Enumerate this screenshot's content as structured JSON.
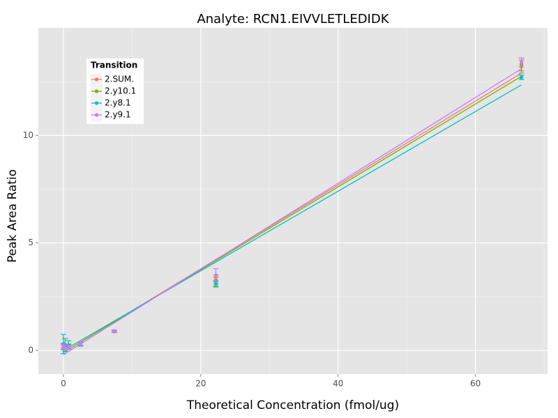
{
  "chart_data": {
    "type": "scatter",
    "title": "Analyte: RCN1.EIVVLETLEDIDK",
    "x_label": "Theoretical Concentration (fmol/ug)",
    "y_label": "Peak Area Ratio",
    "x": [
      0,
      0.25,
      0.74,
      2.47,
      7.41,
      22.2,
      66.7
    ],
    "line_x": [
      0,
      66.7
    ],
    "series": [
      {
        "name": "2.SUM.",
        "color": "#F8766D",
        "values": [
          0.15,
          0.12,
          0.18,
          0.3,
          0.88,
          3.3,
          13.2
        ],
        "errors": [
          0.1,
          0.05,
          0.1,
          0.08,
          0.05,
          0.2,
          0.3
        ],
        "line_values": [
          -0.1,
          12.9
        ]
      },
      {
        "name": "2.y10.1",
        "color": "#7CAE00",
        "values": [
          0.18,
          0.14,
          0.2,
          0.32,
          0.9,
          3.2,
          13.3
        ],
        "errors": [
          0.15,
          0.05,
          0.1,
          0.08,
          0.05,
          0.2,
          0.3
        ],
        "line_values": [
          -0.1,
          12.75
        ]
      },
      {
        "name": "2.y8.1",
        "color": "#00BFC4",
        "values": [
          0.3,
          0.25,
          0.25,
          0.3,
          0.9,
          3.1,
          12.7
        ],
        "errors": [
          0.45,
          0.3,
          0.2,
          0.1,
          0.05,
          0.15,
          0.1
        ],
        "line_values": [
          0.0,
          12.35
        ]
      },
      {
        "name": "2.y9.1",
        "color": "#C77CFF",
        "values": [
          0.2,
          0.1,
          0.15,
          0.32,
          0.9,
          3.5,
          13.4
        ],
        "errors": [
          0.1,
          0.05,
          0.1,
          0.08,
          0.05,
          0.3,
          0.2
        ],
        "line_values": [
          -0.2,
          13.1
        ]
      }
    ],
    "xlim": [
      -3.65,
      70.5
    ],
    "ylim": [
      -1.1,
      15
    ],
    "xticks": [
      0,
      20,
      40,
      60
    ],
    "yticks": [
      0,
      5,
      10
    ],
    "grid": true,
    "legend_title": "Transition",
    "legend_position": "top-left"
  }
}
